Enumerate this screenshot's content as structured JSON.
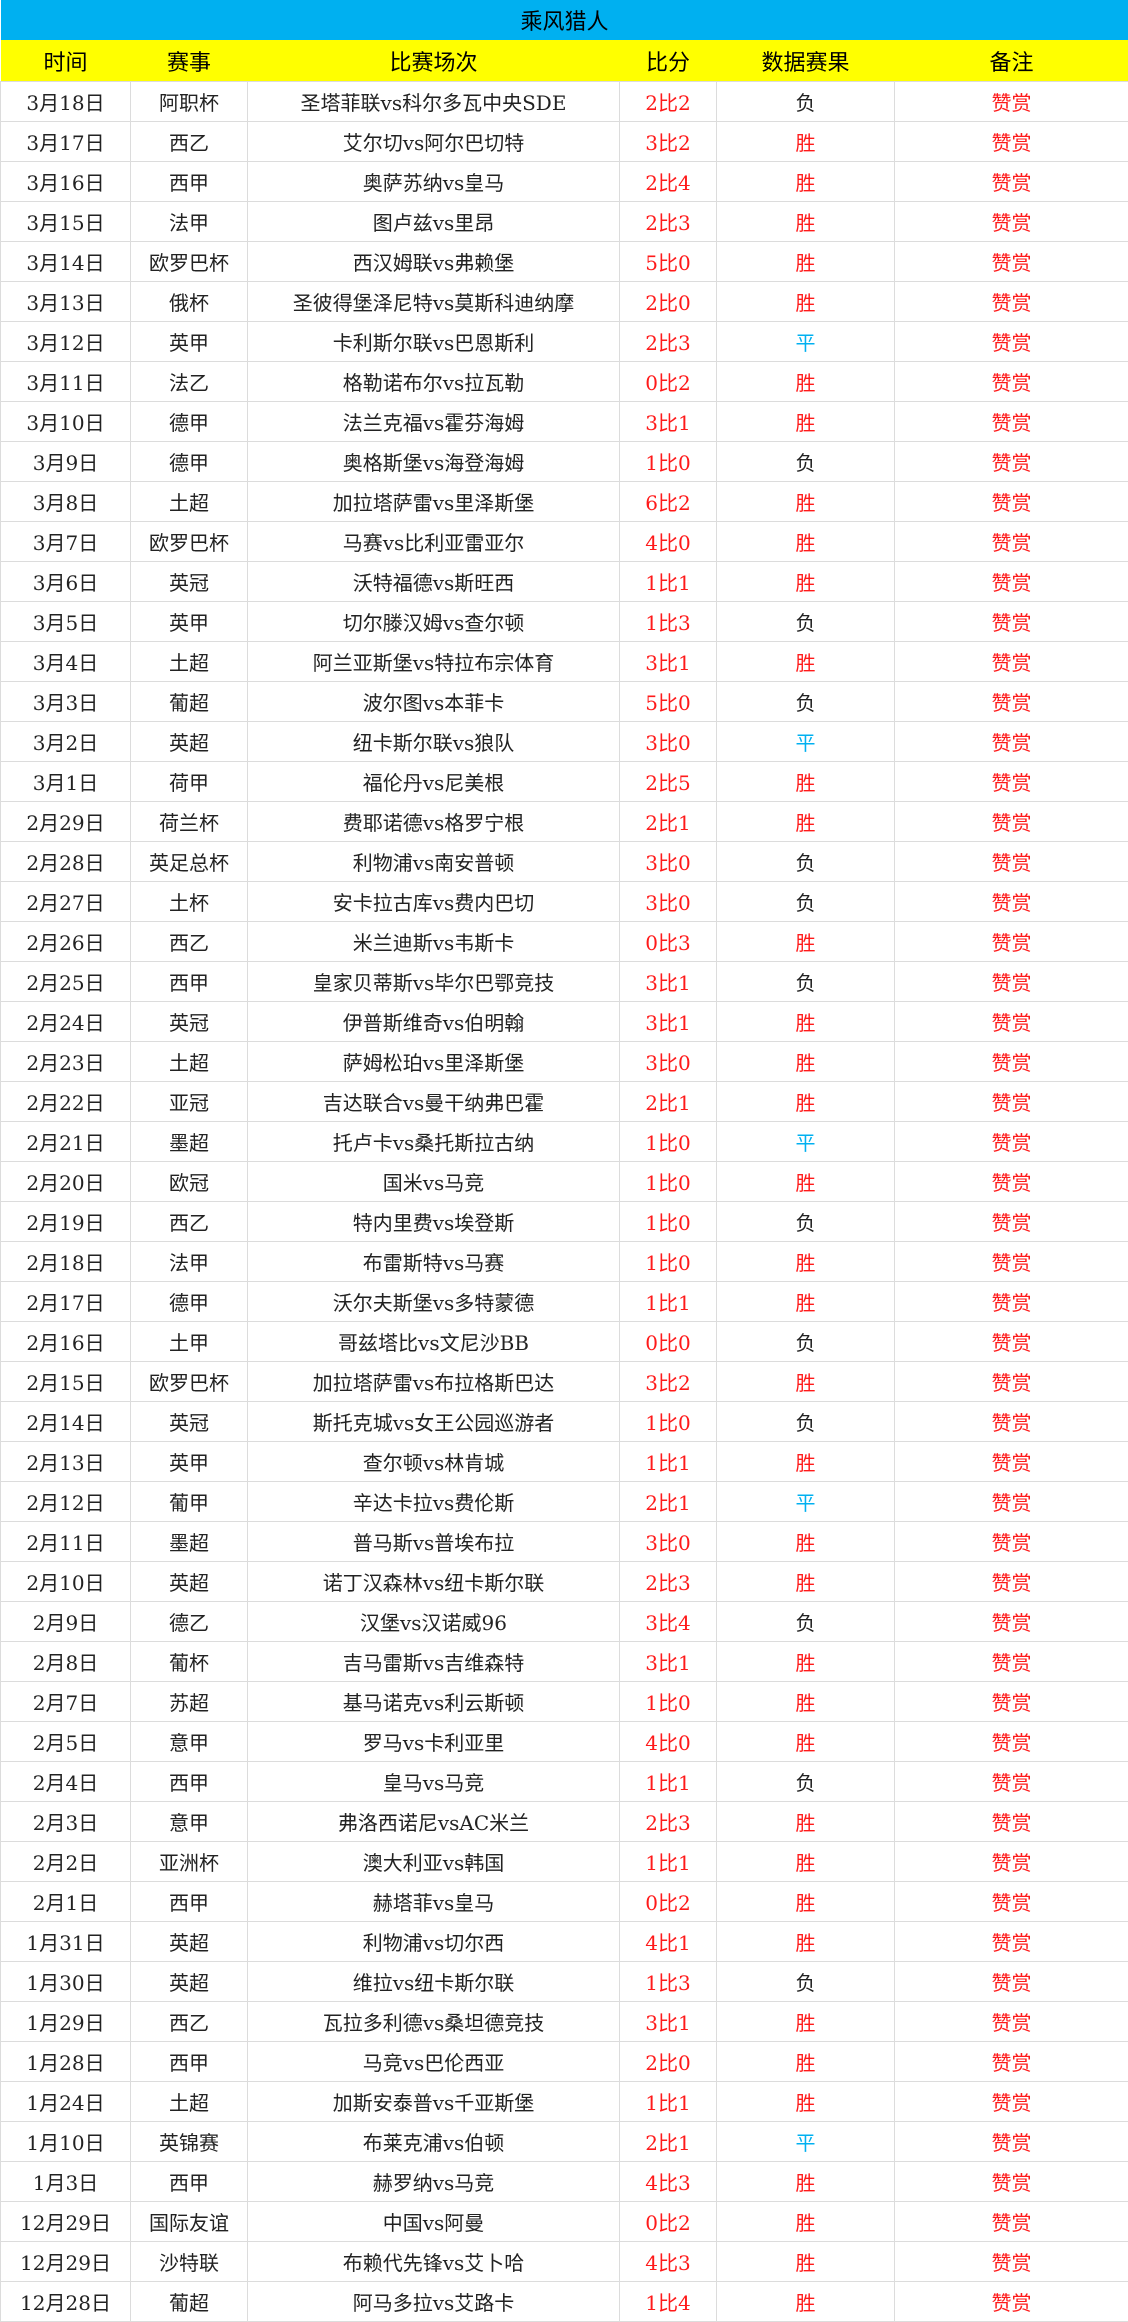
{
  "title": "乘风猎人",
  "headers": [
    "时间",
    "赛事",
    "比赛场次",
    "比分",
    "数据赛果",
    "备注"
  ],
  "colors": {
    "title_bg": "#00b0f0",
    "header_bg": "#ffff00",
    "win": "#ff1a1a",
    "draw": "#00b0f0",
    "loss": "#222222",
    "score": "#ff1a1a",
    "note": "#ff1a1a"
  },
  "rows": [
    [
      "3月18日",
      "阿职杯",
      "圣塔菲联vs科尔多瓦中央SDE",
      "2比2",
      "负",
      "赞赏"
    ],
    [
      "3月17日",
      "西乙",
      "艾尔切vs阿尔巴切特",
      "3比2",
      "胜",
      "赞赏"
    ],
    [
      "3月16日",
      "西甲",
      "奥萨苏纳vs皇马",
      "2比4",
      "胜",
      "赞赏"
    ],
    [
      "3月15日",
      "法甲",
      "图卢兹vs里昂",
      "2比3",
      "胜",
      "赞赏"
    ],
    [
      "3月14日",
      "欧罗巴杯",
      "西汉姆联vs弗赖堡",
      "5比0",
      "胜",
      "赞赏"
    ],
    [
      "3月13日",
      "俄杯",
      "圣彼得堡泽尼特vs莫斯科迪纳摩",
      "2比0",
      "胜",
      "赞赏"
    ],
    [
      "3月12日",
      "英甲",
      "卡利斯尔联vs巴恩斯利",
      "2比3",
      "平",
      "赞赏"
    ],
    [
      "3月11日",
      "法乙",
      "格勒诺布尔vs拉瓦勒",
      "0比2",
      "胜",
      "赞赏"
    ],
    [
      "3月10日",
      "德甲",
      "法兰克福vs霍芬海姆",
      "3比1",
      "胜",
      "赞赏"
    ],
    [
      "3月9日",
      "德甲",
      "奥格斯堡vs海登海姆",
      "1比0",
      "负",
      "赞赏"
    ],
    [
      "3月8日",
      "土超",
      "加拉塔萨雷vs里泽斯堡",
      "6比2",
      "胜",
      "赞赏"
    ],
    [
      "3月7日",
      "欧罗巴杯",
      "马赛vs比利亚雷亚尔",
      "4比0",
      "胜",
      "赞赏"
    ],
    [
      "3月6日",
      "英冠",
      "沃特福德vs斯旺西",
      "1比1",
      "胜",
      "赞赏"
    ],
    [
      "3月5日",
      "英甲",
      "切尔滕汉姆vs查尔顿",
      "1比3",
      "负",
      "赞赏"
    ],
    [
      "3月4日",
      "土超",
      "阿兰亚斯堡vs特拉布宗体育",
      "3比1",
      "胜",
      "赞赏"
    ],
    [
      "3月3日",
      "葡超",
      "波尔图vs本菲卡",
      "5比0",
      "负",
      "赞赏"
    ],
    [
      "3月2日",
      "英超",
      "纽卡斯尔联vs狼队",
      "3比0",
      "平",
      "赞赏"
    ],
    [
      "3月1日",
      "荷甲",
      "福伦丹vs尼美根",
      "2比5",
      "胜",
      "赞赏"
    ],
    [
      "2月29日",
      "荷兰杯",
      "费耶诺德vs格罗宁根",
      "2比1",
      "胜",
      "赞赏"
    ],
    [
      "2月28日",
      "英足总杯",
      "利物浦vs南安普顿",
      "3比0",
      "负",
      "赞赏"
    ],
    [
      "2月27日",
      "土杯",
      "安卡拉古库vs费内巴切",
      "3比0",
      "负",
      "赞赏"
    ],
    [
      "2月26日",
      "西乙",
      "米兰迪斯vs韦斯卡",
      "0比3",
      "胜",
      "赞赏"
    ],
    [
      "2月25日",
      "西甲",
      "皇家贝蒂斯vs毕尔巴鄂竞技",
      "3比1",
      "负",
      "赞赏"
    ],
    [
      "2月24日",
      "英冠",
      "伊普斯维奇vs伯明翰",
      "3比1",
      "胜",
      "赞赏"
    ],
    [
      "2月23日",
      "土超",
      "萨姆松珀vs里泽斯堡",
      "3比0",
      "胜",
      "赞赏"
    ],
    [
      "2月22日",
      "亚冠",
      "吉达联合vs曼干纳弗巴霍",
      "2比1",
      "胜",
      "赞赏"
    ],
    [
      "2月21日",
      "墨超",
      "托卢卡vs桑托斯拉古纳",
      "1比0",
      "平",
      "赞赏"
    ],
    [
      "2月20日",
      "欧冠",
      "国米vs马竞",
      "1比0",
      "胜",
      "赞赏"
    ],
    [
      "2月19日",
      "西乙",
      "特内里费vs埃登斯",
      "1比0",
      "负",
      "赞赏"
    ],
    [
      "2月18日",
      "法甲",
      "布雷斯特vs马赛",
      "1比0",
      "胜",
      "赞赏"
    ],
    [
      "2月17日",
      "德甲",
      "沃尔夫斯堡vs多特蒙德",
      "1比1",
      "胜",
      "赞赏"
    ],
    [
      "2月16日",
      "土甲",
      "哥兹塔比vs文尼沙BB",
      "0比0",
      "负",
      "赞赏"
    ],
    [
      "2月15日",
      "欧罗巴杯",
      "加拉塔萨雷vs布拉格斯巴达",
      "3比2",
      "胜",
      "赞赏"
    ],
    [
      "2月14日",
      "英冠",
      "斯托克城vs女王公园巡游者",
      "1比0",
      "负",
      "赞赏"
    ],
    [
      "2月13日",
      "英甲",
      "查尔顿vs林肯城",
      "1比1",
      "胜",
      "赞赏"
    ],
    [
      "2月12日",
      "葡甲",
      "辛达卡拉vs费伦斯",
      "2比1",
      "平",
      "赞赏"
    ],
    [
      "2月11日",
      "墨超",
      "普马斯vs普埃布拉",
      "3比0",
      "胜",
      "赞赏"
    ],
    [
      "2月10日",
      "英超",
      "诺丁汉森林vs纽卡斯尔联",
      "2比3",
      "胜",
      "赞赏"
    ],
    [
      "2月9日",
      "德乙",
      "汉堡vs汉诺威96",
      "3比4",
      "负",
      "赞赏"
    ],
    [
      "2月8日",
      "葡杯",
      "吉马雷斯vs吉维森特",
      "3比1",
      "胜",
      "赞赏"
    ],
    [
      "2月7日",
      "苏超",
      "基马诺克vs利云斯顿",
      "1比0",
      "胜",
      "赞赏"
    ],
    [
      "2月5日",
      "意甲",
      "罗马vs卡利亚里",
      "4比0",
      "胜",
      "赞赏"
    ],
    [
      "2月4日",
      "西甲",
      "皇马vs马竞",
      "1比1",
      "负",
      "赞赏"
    ],
    [
      "2月3日",
      "意甲",
      "弗洛西诺尼vsAC米兰",
      "2比3",
      "胜",
      "赞赏"
    ],
    [
      "2月2日",
      "亚洲杯",
      "澳大利亚vs韩国",
      "1比1",
      "胜",
      "赞赏"
    ],
    [
      "2月1日",
      "西甲",
      "赫塔菲vs皇马",
      "0比2",
      "胜",
      "赞赏"
    ],
    [
      "1月31日",
      "英超",
      "利物浦vs切尔西",
      "4比1",
      "胜",
      "赞赏"
    ],
    [
      "1月30日",
      "英超",
      "维拉vs纽卡斯尔联",
      "1比3",
      "负",
      "赞赏"
    ],
    [
      "1月29日",
      "西乙",
      "瓦拉多利德vs桑坦德竞技",
      "3比1",
      "胜",
      "赞赏"
    ],
    [
      "1月28日",
      "西甲",
      "马竞vs巴伦西亚",
      "2比0",
      "胜",
      "赞赏"
    ],
    [
      "1月24日",
      "土超",
      "加斯安泰普vs千亚斯堡",
      "1比1",
      "胜",
      "赞赏"
    ],
    [
      "1月10日",
      "英锦赛",
      "布莱克浦vs伯顿",
      "2比1",
      "平",
      "赞赏"
    ],
    [
      "1月3日",
      "西甲",
      "赫罗纳vs马竞",
      "4比3",
      "胜",
      "赞赏"
    ],
    [
      "12月29日",
      "国际友谊",
      "中国vs阿曼",
      "0比2",
      "胜",
      "赞赏"
    ],
    [
      "12月29日",
      "沙特联",
      "布赖代先锋vs艾卜哈",
      "4比3",
      "胜",
      "赞赏"
    ],
    [
      "12月28日",
      "葡超",
      "阿马多拉vs艾路卡",
      "1比4",
      "胜",
      "赞赏"
    ]
  ]
}
